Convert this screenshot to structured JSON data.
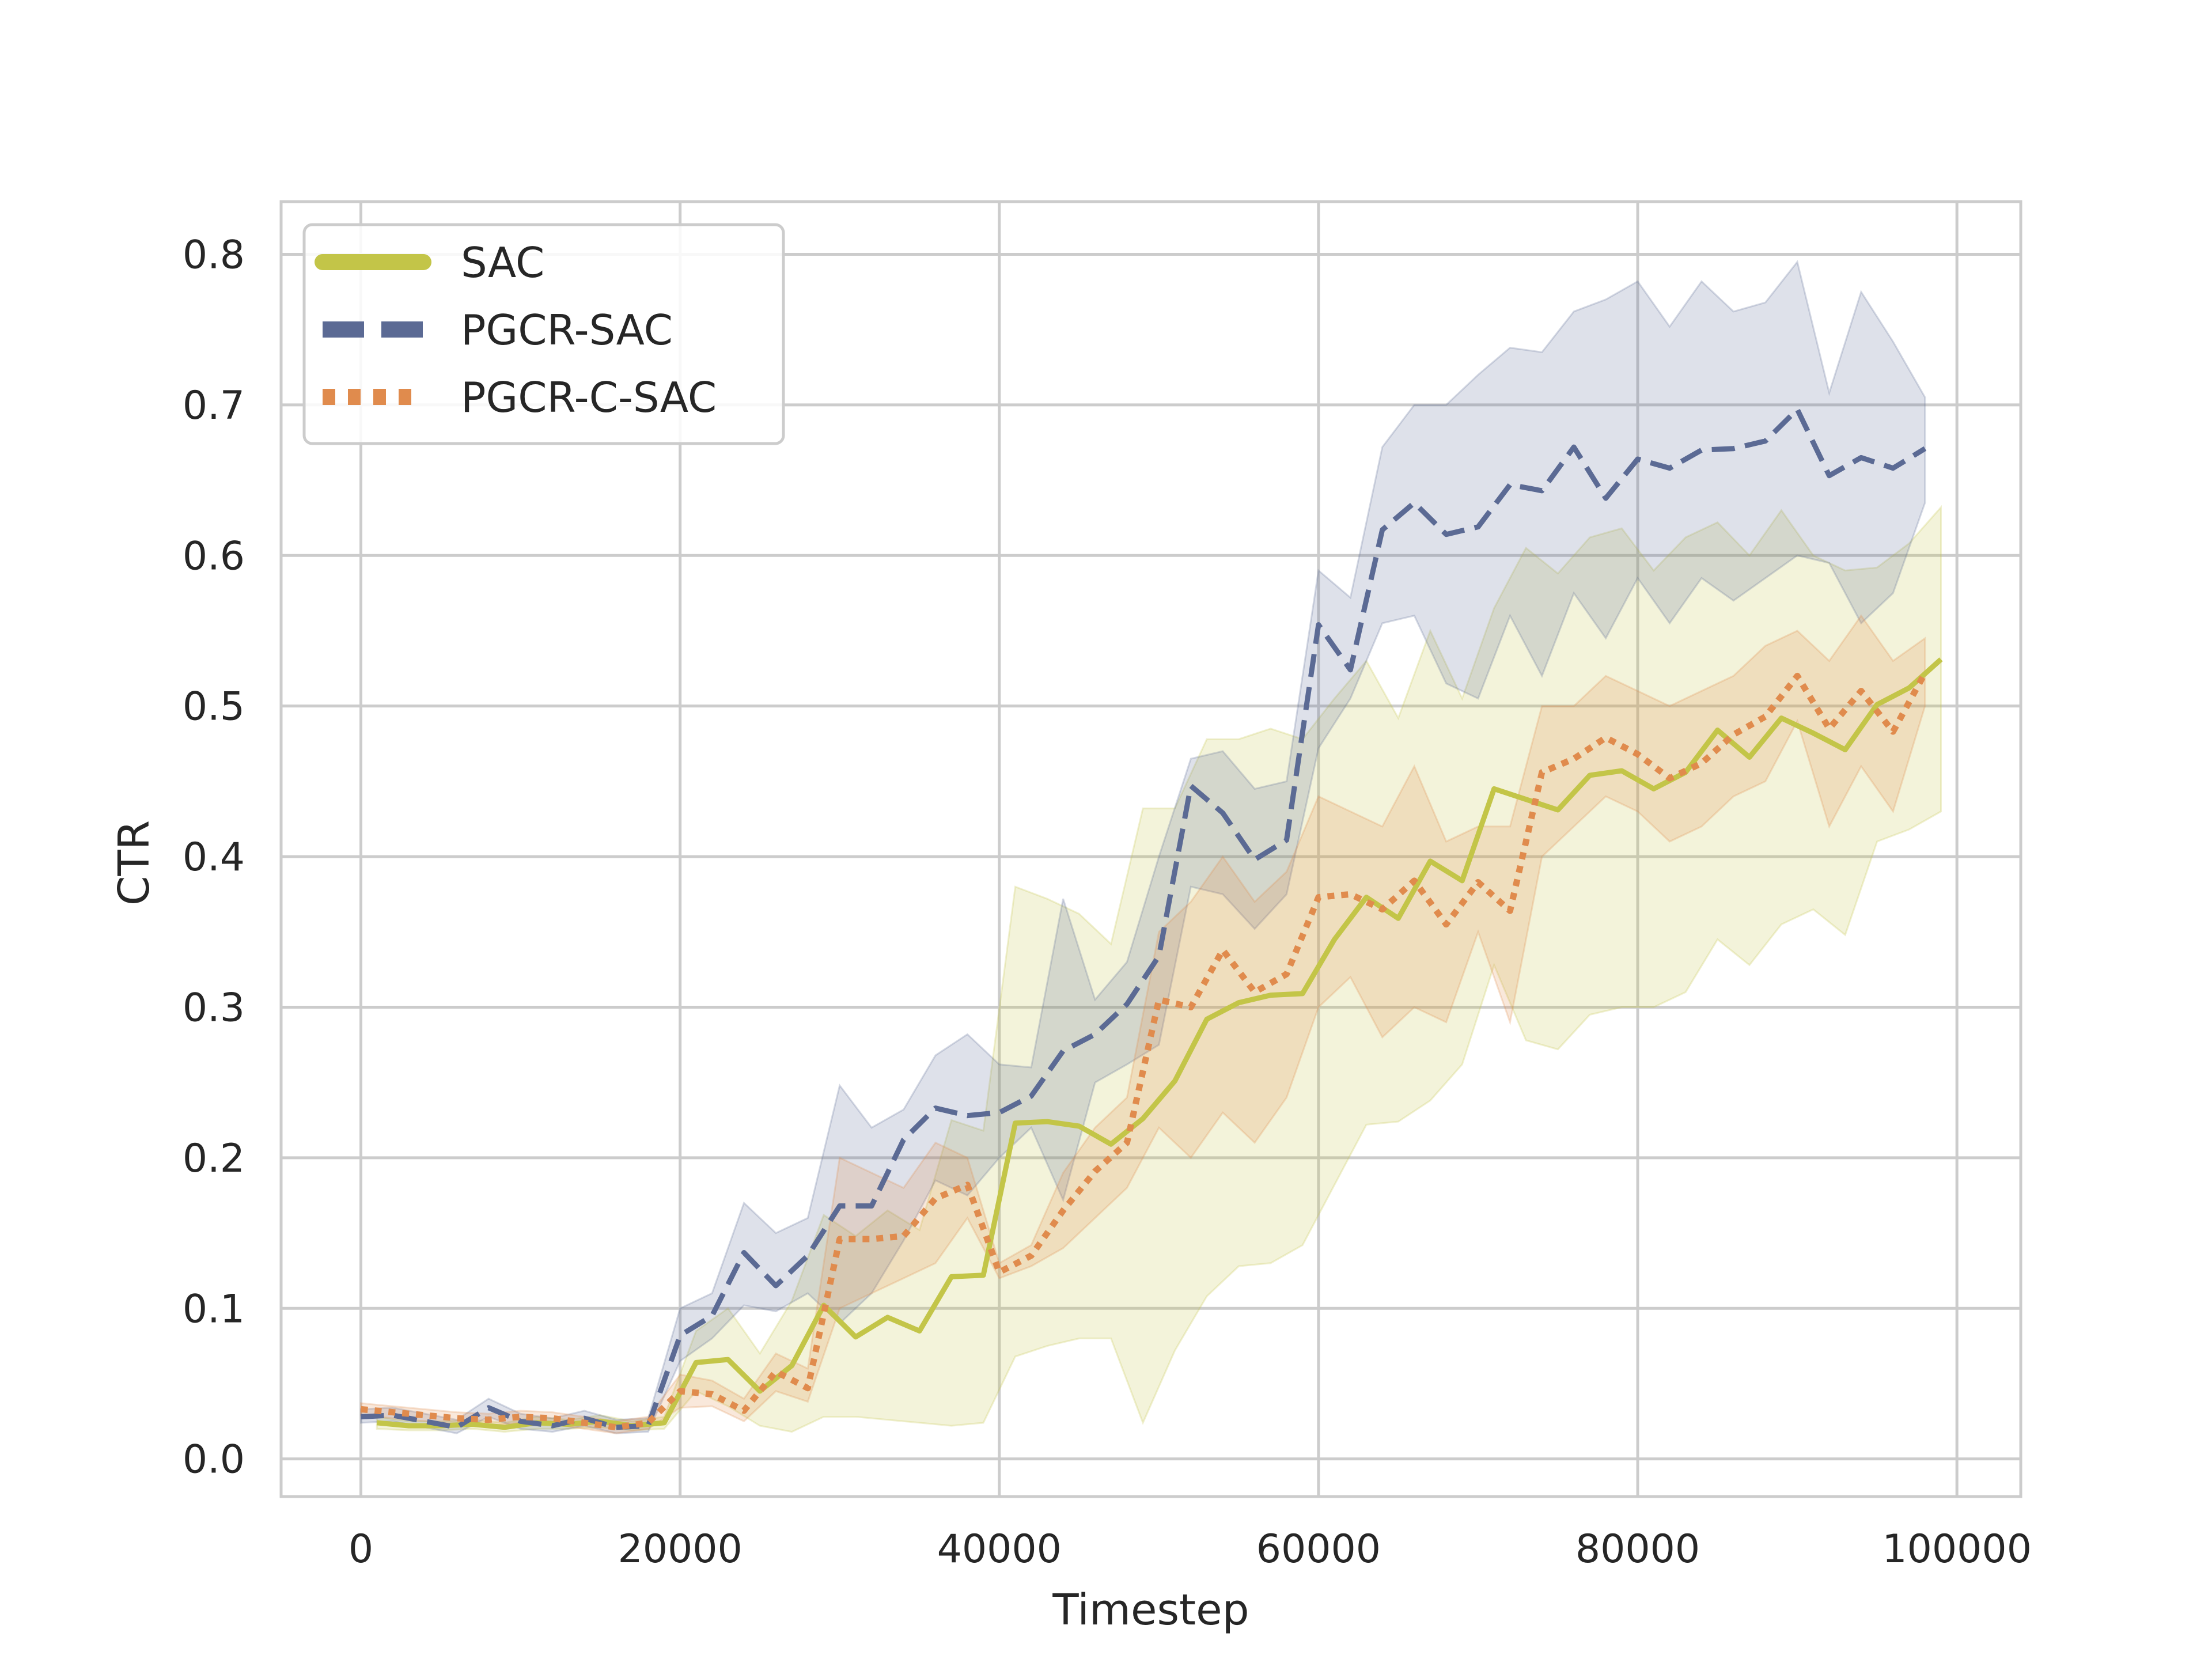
{
  "chart_data": {
    "type": "line",
    "title": "",
    "xlabel": "Timestep",
    "ylabel": "CTR",
    "xlim": [
      -5000,
      104000
    ],
    "ylim": [
      -0.025,
      0.835
    ],
    "xticks": [
      0,
      20000,
      40000,
      60000,
      80000,
      100000
    ],
    "xtick_labels": [
      "0",
      "20000",
      "40000",
      "60000",
      "80000",
      "100000"
    ],
    "yticks": [
      0.0,
      0.1,
      0.2,
      0.3,
      0.4,
      0.5,
      0.6,
      0.7,
      0.8
    ],
    "ytick_labels": [
      "0.0",
      "0.1",
      "0.2",
      "0.3",
      "0.4",
      "0.5",
      "0.6",
      "0.7",
      "0.8"
    ],
    "grid": true,
    "legend_position": "top-left",
    "series": [
      {
        "name": "SAC",
        "color": "#c3c548",
        "style": "solid",
        "x": [
          1000,
          3000,
          5000,
          7000,
          9000,
          11000,
          13000,
          15000,
          17000,
          19000,
          21000,
          23000,
          25000,
          27000,
          29000,
          31000,
          33000,
          35000,
          37000,
          39000,
          41000,
          43000,
          45000,
          47000,
          49000,
          51000,
          53000,
          55000,
          57000,
          59000,
          61000,
          63000,
          65000,
          67000,
          69000,
          71000,
          73000,
          75000,
          77000,
          79000,
          81000,
          83000,
          85000,
          87000,
          89000,
          91000,
          93000,
          95000,
          97000,
          99000
        ],
        "y": [
          0.024,
          0.022,
          0.022,
          0.023,
          0.021,
          0.024,
          0.023,
          0.025,
          0.022,
          0.024,
          0.064,
          0.066,
          0.045,
          0.062,
          0.102,
          0.081,
          0.094,
          0.085,
          0.121,
          0.122,
          0.223,
          0.224,
          0.221,
          0.209,
          0.226,
          0.251,
          0.292,
          0.303,
          0.308,
          0.309,
          0.345,
          0.373,
          0.359,
          0.397,
          0.384,
          0.445,
          0.438,
          0.431,
          0.454,
          0.457,
          0.445,
          0.456,
          0.484,
          0.466,
          0.492,
          0.482,
          0.471,
          0.501,
          0.512,
          0.531
        ],
        "lower": [
          0.02,
          0.019,
          0.019,
          0.02,
          0.018,
          0.02,
          0.02,
          0.021,
          0.019,
          0.02,
          0.045,
          0.035,
          0.022,
          0.018,
          0.028,
          0.028,
          0.026,
          0.024,
          0.022,
          0.024,
          0.068,
          0.075,
          0.08,
          0.08,
          0.024,
          0.072,
          0.108,
          0.128,
          0.13,
          0.142,
          0.182,
          0.222,
          0.224,
          0.238,
          0.262,
          0.328,
          0.278,
          0.272,
          0.295,
          0.3,
          0.3,
          0.31,
          0.345,
          0.328,
          0.355,
          0.365,
          0.348,
          0.41,
          0.418,
          0.43
        ],
        "upper": [
          0.028,
          0.025,
          0.025,
          0.026,
          0.024,
          0.028,
          0.026,
          0.029,
          0.025,
          0.028,
          0.085,
          0.1,
          0.07,
          0.105,
          0.162,
          0.148,
          0.165,
          0.152,
          0.225,
          0.218,
          0.38,
          0.372,
          0.362,
          0.342,
          0.432,
          0.432,
          0.478,
          0.478,
          0.485,
          0.478,
          0.505,
          0.53,
          0.492,
          0.55,
          0.505,
          0.565,
          0.605,
          0.588,
          0.612,
          0.618,
          0.59,
          0.612,
          0.622,
          0.6,
          0.63,
          0.6,
          0.59,
          0.592,
          0.608,
          0.632
        ]
      },
      {
        "name": "PGCR-SAC",
        "color": "#5b6a94",
        "style": "dashed",
        "x": [
          0,
          2000,
          4000,
          6000,
          8000,
          10000,
          12000,
          14000,
          16000,
          18000,
          20000,
          22000,
          24000,
          26000,
          28000,
          30000,
          32000,
          34000,
          36000,
          38000,
          40000,
          42000,
          44000,
          46000,
          48000,
          50000,
          52000,
          54000,
          56000,
          58000,
          60000,
          62000,
          64000,
          66000,
          68000,
          70000,
          72000,
          74000,
          76000,
          78000,
          80000,
          82000,
          84000,
          86000,
          88000,
          90000,
          92000,
          94000,
          96000,
          98000
        ],
        "y": [
          0.028,
          0.029,
          0.025,
          0.021,
          0.034,
          0.025,
          0.022,
          0.027,
          0.021,
          0.022,
          0.082,
          0.095,
          0.137,
          0.115,
          0.135,
          0.168,
          0.168,
          0.212,
          0.233,
          0.228,
          0.23,
          0.241,
          0.271,
          0.282,
          0.302,
          0.334,
          0.447,
          0.429,
          0.398,
          0.411,
          0.554,
          0.524,
          0.617,
          0.635,
          0.614,
          0.619,
          0.647,
          0.643,
          0.672,
          0.638,
          0.664,
          0.658,
          0.67,
          0.671,
          0.676,
          0.697,
          0.653,
          0.665,
          0.658,
          0.671
        ],
        "lower": [
          0.024,
          0.025,
          0.021,
          0.017,
          0.028,
          0.02,
          0.018,
          0.022,
          0.017,
          0.018,
          0.065,
          0.08,
          0.102,
          0.098,
          0.11,
          0.09,
          0.11,
          0.145,
          0.185,
          0.175,
          0.2,
          0.22,
          0.172,
          0.25,
          0.262,
          0.275,
          0.38,
          0.375,
          0.352,
          0.375,
          0.472,
          0.505,
          0.555,
          0.56,
          0.515,
          0.505,
          0.56,
          0.52,
          0.575,
          0.545,
          0.585,
          0.555,
          0.585,
          0.57,
          0.585,
          0.6,
          0.595,
          0.555,
          0.575,
          0.635
        ],
        "upper": [
          0.033,
          0.034,
          0.03,
          0.026,
          0.04,
          0.03,
          0.027,
          0.032,
          0.026,
          0.027,
          0.1,
          0.11,
          0.17,
          0.15,
          0.16,
          0.248,
          0.22,
          0.232,
          0.268,
          0.282,
          0.262,
          0.26,
          0.372,
          0.305,
          0.33,
          0.4,
          0.465,
          0.47,
          0.445,
          0.45,
          0.59,
          0.572,
          0.672,
          0.7,
          0.7,
          0.72,
          0.738,
          0.735,
          0.762,
          0.77,
          0.782,
          0.752,
          0.782,
          0.762,
          0.768,
          0.795,
          0.708,
          0.775,
          0.742,
          0.705
        ]
      },
      {
        "name": "PGCR-C-SAC",
        "color": "#e08b4d",
        "style": "dotted",
        "x": [
          0,
          2000,
          4000,
          6000,
          8000,
          10000,
          12000,
          14000,
          16000,
          18000,
          20000,
          22000,
          24000,
          26000,
          28000,
          30000,
          32000,
          34000,
          36000,
          38000,
          40000,
          42000,
          44000,
          46000,
          48000,
          50000,
          52000,
          54000,
          56000,
          58000,
          60000,
          62000,
          64000,
          66000,
          68000,
          70000,
          72000,
          74000,
          76000,
          78000,
          80000,
          82000,
          84000,
          86000,
          88000,
          90000,
          92000,
          94000,
          96000,
          98000
        ],
        "y": [
          0.033,
          0.031,
          0.029,
          0.027,
          0.026,
          0.028,
          0.027,
          0.024,
          0.021,
          0.024,
          0.045,
          0.043,
          0.032,
          0.058,
          0.047,
          0.146,
          0.146,
          0.148,
          0.173,
          0.182,
          0.124,
          0.135,
          0.165,
          0.191,
          0.21,
          0.305,
          0.3,
          0.338,
          0.31,
          0.322,
          0.373,
          0.375,
          0.365,
          0.384,
          0.355,
          0.383,
          0.364,
          0.456,
          0.465,
          0.479,
          0.468,
          0.452,
          0.462,
          0.481,
          0.493,
          0.52,
          0.485,
          0.51,
          0.483,
          0.522
        ],
        "lower": [
          0.029,
          0.027,
          0.025,
          0.023,
          0.022,
          0.024,
          0.023,
          0.02,
          0.017,
          0.02,
          0.034,
          0.035,
          0.025,
          0.045,
          0.038,
          0.1,
          0.11,
          0.12,
          0.13,
          0.16,
          0.12,
          0.128,
          0.14,
          0.16,
          0.18,
          0.22,
          0.2,
          0.23,
          0.21,
          0.24,
          0.3,
          0.32,
          0.28,
          0.3,
          0.29,
          0.35,
          0.29,
          0.4,
          0.42,
          0.44,
          0.43,
          0.41,
          0.42,
          0.44,
          0.45,
          0.49,
          0.42,
          0.46,
          0.43,
          0.5
        ],
        "upper": [
          0.037,
          0.035,
          0.033,
          0.031,
          0.03,
          0.032,
          0.031,
          0.028,
          0.025,
          0.028,
          0.056,
          0.052,
          0.04,
          0.07,
          0.06,
          0.2,
          0.19,
          0.18,
          0.21,
          0.2,
          0.13,
          0.142,
          0.19,
          0.22,
          0.24,
          0.35,
          0.37,
          0.4,
          0.37,
          0.39,
          0.44,
          0.43,
          0.42,
          0.46,
          0.41,
          0.42,
          0.42,
          0.5,
          0.5,
          0.52,
          0.51,
          0.5,
          0.51,
          0.52,
          0.54,
          0.55,
          0.53,
          0.56,
          0.53,
          0.545
        ]
      }
    ]
  }
}
